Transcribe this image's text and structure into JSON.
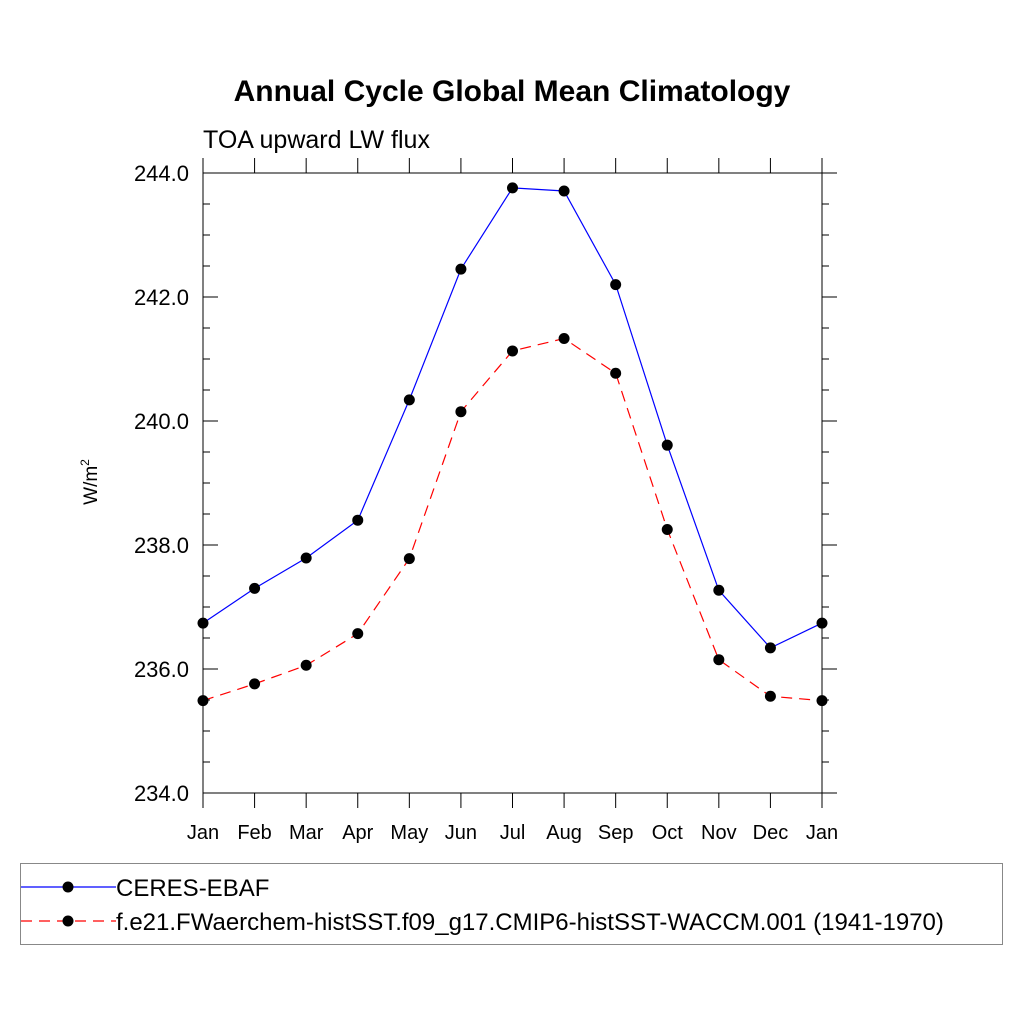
{
  "chart_data": {
    "type": "line",
    "title": "Annual Cycle Global Mean Climatology",
    "subtitle": "TOA upward LW flux",
    "xlabel": "",
    "ylabel": "W/m",
    "ylabel_superscript": "2",
    "categories": [
      "Jan",
      "Feb",
      "Mar",
      "Apr",
      "May",
      "Jun",
      "Jul",
      "Aug",
      "Sep",
      "Oct",
      "Nov",
      "Dec",
      "Jan"
    ],
    "ylim": [
      234.0,
      244.0
    ],
    "yticks": [
      "234.0",
      "236.0",
      "238.0",
      "240.0",
      "242.0",
      "244.0"
    ],
    "ytick_values": [
      234,
      236,
      238,
      240,
      242,
      244
    ],
    "series": [
      {
        "name": "CERES-EBAF",
        "color": "#0000ff",
        "dash": "solid",
        "values": [
          236.74,
          237.3,
          237.79,
          238.4,
          240.34,
          242.45,
          243.76,
          243.71,
          242.2,
          239.61,
          237.27,
          236.34,
          236.74
        ]
      },
      {
        "name": "f.e21.FWaerchem-histSST.f09_g17.CMIP6-histSST-WACCM.001 (1941-1970)",
        "color": "#ff0000",
        "dash": "dashed",
        "values": [
          235.49,
          235.76,
          236.06,
          236.57,
          237.78,
          240.15,
          241.13,
          241.33,
          240.77,
          238.25,
          236.15,
          235.56,
          235.49
        ]
      }
    ],
    "legend_position": "bottom"
  }
}
